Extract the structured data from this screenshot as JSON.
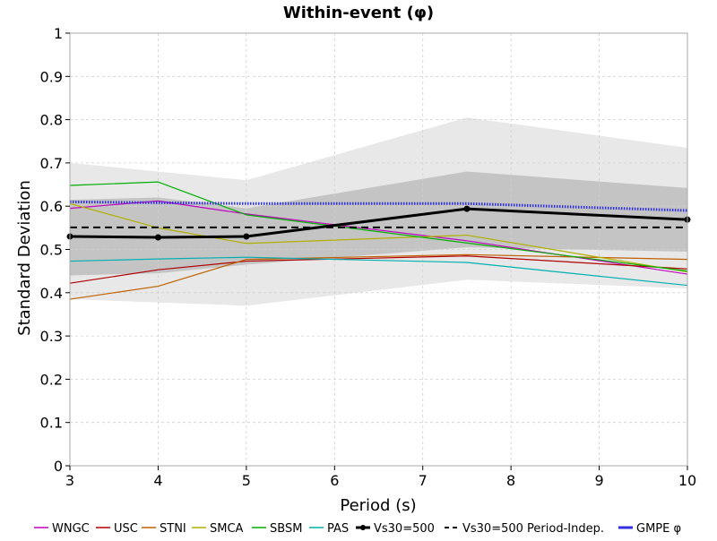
{
  "chart_data": {
    "type": "line",
    "title": "Within-event (φ)",
    "xlabel": "Period (s)",
    "ylabel": "Standard Deviation",
    "xlim": [
      3,
      10
    ],
    "ylim": [
      0,
      1
    ],
    "x_ticks": [
      "3",
      "4",
      "5",
      "6",
      "7",
      "8",
      "9",
      "10"
    ],
    "y_ticks": [
      "0",
      "0.1",
      "0.2",
      "0.3",
      "0.4",
      "0.5",
      "0.6",
      "0.7",
      "0.8",
      "0.9",
      "1"
    ],
    "grid": true,
    "legend_position": "bottom",
    "bands": [
      {
        "color": "#e8e8e8",
        "upper": [
          [
            3,
            0.7
          ],
          [
            5,
            0.66
          ],
          [
            7.5,
            0.805
          ],
          [
            10,
            0.735
          ]
        ],
        "lower": [
          [
            3,
            0.385
          ],
          [
            5,
            0.37
          ],
          [
            7.5,
            0.43
          ],
          [
            10,
            0.41
          ]
        ]
      },
      {
        "color": "#c4c4c4",
        "upper": [
          [
            3,
            0.615
          ],
          [
            4,
            0.62
          ],
          [
            5,
            0.595
          ],
          [
            7.5,
            0.68
          ],
          [
            10,
            0.642
          ]
        ],
        "lower": [
          [
            3,
            0.44
          ],
          [
            4,
            0.445
          ],
          [
            5,
            0.465
          ],
          [
            7.5,
            0.505
          ],
          [
            10,
            0.495
          ]
        ]
      }
    ],
    "series": [
      {
        "name": "WNGC",
        "color": "#c000c0",
        "style": "solid",
        "width": 1.2,
        "x": [
          3,
          4,
          5,
          7.5,
          10
        ],
        "y": [
          0.595,
          0.612,
          0.582,
          0.52,
          0.443
        ]
      },
      {
        "name": "USC",
        "color": "#b00000",
        "style": "solid",
        "width": 1.2,
        "x": [
          3,
          4,
          5,
          7.5,
          10
        ],
        "y": [
          0.422,
          0.453,
          0.473,
          0.485,
          0.455
        ]
      },
      {
        "name": "STNI",
        "color": "#c06000",
        "style": "solid",
        "width": 1.2,
        "x": [
          3,
          4,
          5,
          7.5,
          10
        ],
        "y": [
          0.385,
          0.415,
          0.477,
          0.488,
          0.477
        ]
      },
      {
        "name": "SMCA",
        "color": "#b0b000",
        "style": "solid",
        "width": 1.2,
        "x": [
          3,
          4,
          5,
          7.5,
          10
        ],
        "y": [
          0.606,
          0.55,
          0.514,
          0.533,
          0.448
        ]
      },
      {
        "name": "SBSM",
        "color": "#00b000",
        "style": "solid",
        "width": 1.2,
        "x": [
          3,
          4,
          5,
          7.5,
          10
        ],
        "y": [
          0.648,
          0.656,
          0.58,
          0.515,
          0.45
        ]
      },
      {
        "name": "PAS",
        "color": "#00b0b0",
        "style": "solid",
        "width": 1.2,
        "x": [
          3,
          4,
          5,
          7.5,
          10
        ],
        "y": [
          0.473,
          0.478,
          0.482,
          0.47,
          0.417
        ]
      },
      {
        "name": "Vs30=500",
        "color": "#000000",
        "style": "solid",
        "width": 3,
        "markers": true,
        "x": [
          3,
          4,
          5,
          7.5,
          10
        ],
        "y": [
          0.53,
          0.528,
          0.53,
          0.594,
          0.569
        ]
      },
      {
        "name": "Vs30=500 Period-Indep.",
        "color": "#000000",
        "style": "dashed",
        "width": 2,
        "x": [
          3,
          10
        ],
        "y": [
          0.551,
          0.551
        ]
      },
      {
        "name": "GMPE φ",
        "color": "#3030e0",
        "style": "dotted",
        "width": 3,
        "x": [
          3,
          5,
          7.5,
          10
        ],
        "y": [
          0.61,
          0.606,
          0.606,
          0.59
        ]
      }
    ]
  }
}
